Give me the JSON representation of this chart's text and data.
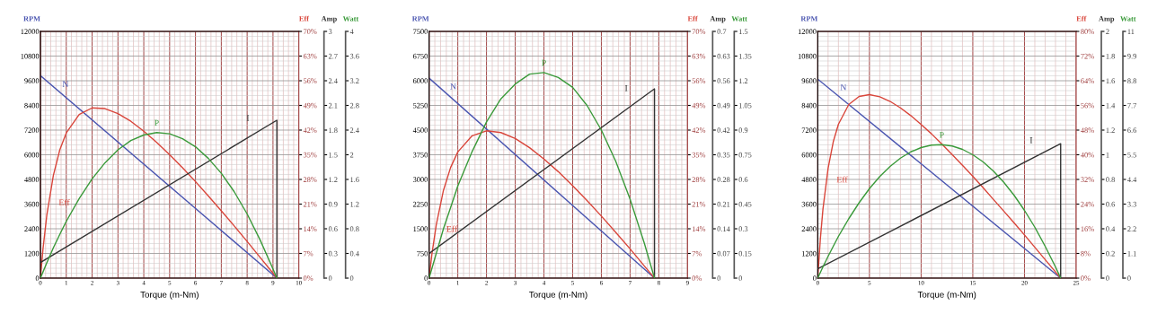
{
  "chart_data": [
    {
      "type": "line",
      "xlabel": "Torque (m-Nm)",
      "ylabel": "RPM",
      "y2label": "Eff",
      "y3label": "Amp",
      "grid": true,
      "marker": "none",
      "line_style": "solid",
      "xlim": [
        0,
        10
      ],
      "xticks": [
        0,
        {
          "value": 0.2,
          "label": null
        },
        {
          "value": 0.4,
          "label": null
        },
        {
          "value": 0.6,
          "label": null
        },
        {
          "value": 0.8,
          "label": null
        },
        1,
        {
          "value": 1.2,
          "label": null
        },
        {
          "value": 1.4,
          "label": null
        },
        {
          "value": 1.6,
          "label": null
        },
        {
          "value": 1.8,
          "label": null
        },
        2,
        {
          "value": 2.2,
          "label": null
        },
        {
          "value": 2.4,
          "label": null
        },
        {
          "value": 2.6,
          "label": null
        },
        {
          "value": 2.8,
          "label": null
        },
        3,
        {
          "value": 3.2,
          "label": null
        },
        {
          "value": 3.4,
          "label": null
        },
        {
          "value": 3.6,
          "label": null
        },
        {
          "value": 3.8,
          "label": null
        },
        4,
        {
          "value": 4.2,
          "label": null
        },
        {
          "value": 4.4,
          "label": null
        },
        {
          "value": 4.6,
          "label": null
        },
        {
          "value": 4.8,
          "label": null
        },
        5,
        {
          "value": 5.2,
          "label": null
        },
        {
          "value": 5.4,
          "label": null
        },
        {
          "value": 5.6,
          "label": null
        },
        {
          "value": 5.8,
          "label": null
        },
        6,
        {
          "value": 6.2,
          "label": null
        },
        {
          "value": 6.4,
          "label": null
        },
        {
          "value": 6.6,
          "label": null
        },
        {
          "value": 6.8,
          "label": null
        },
        7,
        {
          "value": 7.2,
          "label": null
        },
        {
          "value": 7.4,
          "label": null
        },
        {
          "value": 7.6,
          "label": null
        },
        {
          "value": 7.8,
          "label": null
        },
        8,
        {
          "value": 8.2,
          "label": null
        },
        {
          "value": 8.4,
          "label": null
        },
        {
          "value": 8.6,
          "label": null
        },
        {
          "value": 8.8,
          "label": null
        },
        9,
        {
          "value": 9.2,
          "label": null
        },
        {
          "value": 9.4,
          "label": null
        },
        {
          "value": 9.6,
          "label": null
        },
        {
          "value": 9.8,
          "label": null
        },
        10
      ],
      "ylim": [
        0,
        12000
      ],
      "yticks": [
        0,
        1200,
        2400,
        3600,
        4800,
        6000,
        7200,
        8400,
        9600,
        10800,
        12000
      ],
      "y2lim": [
        0,
        70
      ],
      "y2ticks": [
        {
          "value": 0,
          "label": "0%"
        },
        {
          "value": 7,
          "label": "7%"
        },
        {
          "value": 14,
          "label": "14%"
        },
        {
          "value": 21,
          "label": "21%"
        },
        {
          "value": 28,
          "label": "28%"
        },
        {
          "value": 35,
          "label": "35%"
        },
        {
          "value": 42,
          "label": "42%"
        },
        {
          "value": 49,
          "label": "49%"
        },
        {
          "value": 56,
          "label": "56%"
        },
        {
          "value": 63,
          "label": "63%"
        },
        {
          "value": 70,
          "label": "70%"
        }
      ],
      "y3lim": [
        0,
        3
      ],
      "y3ticks": [
        0,
        0.3,
        0.6,
        0.9,
        1.2,
        1.5,
        1.8,
        2.1,
        2.4,
        2.7,
        3
      ],
      "series": [
        {
          "name": "N",
          "color": "#4a55b0",
          "axis": "y",
          "x": [
            0,
            9.15
          ],
          "values": [
            9850,
            0
          ]
        },
        {
          "name": "Eff",
          "color": "#d9453a",
          "axis": "y2",
          "x": [
            0,
            0.1,
            0.25,
            0.5,
            0.75,
            1,
            1.5,
            2,
            2.5,
            3,
            3.5,
            4,
            4.5,
            5,
            5.5,
            6,
            6.5,
            7,
            7.5,
            8,
            8.5,
            9,
            9.15
          ],
          "values": [
            0,
            8.3,
            18.0,
            29.1,
            36.4,
            41.2,
            46.4,
            48.3,
            48.1,
            46.7,
            44.5,
            41.7,
            38.5,
            35.0,
            31.3,
            27.4,
            23.3,
            19.1,
            14.8,
            10.4,
            5.9,
            1.4,
            0
          ]
        },
        {
          "name": "I",
          "color": "#333333",
          "axis": "y3",
          "x": [
            0,
            9.15,
            9.15
          ],
          "values": [
            0.19,
            1.92,
            0
          ]
        }
      ]
    },
    {
      "type": "line",
      "ylabel": "Watt",
      "tick_labels": "y",
      "marker": "none",
      "line_style": "solid",
      "xlim": [
        0,
        10
      ],
      "ylim": [
        0,
        4
      ],
      "yticks": [
        0,
        0.4,
        0.8,
        1.2,
        1.6,
        2,
        2.4,
        2.8,
        3.2,
        3.6,
        4
      ],
      "series": [
        {
          "name": "P",
          "color": "#3a9a3a",
          "x": [
            0,
            0.1,
            0.25,
            0.5,
            0.75,
            1,
            1.5,
            2,
            2.5,
            3,
            3.5,
            4,
            4.5,
            5,
            5.5,
            6,
            6.5,
            7,
            7.5,
            8,
            8.5,
            9,
            9.15
          ],
          "values": [
            0,
            0.1,
            0.25,
            0.49,
            0.71,
            0.92,
            1.29,
            1.61,
            1.87,
            2.08,
            2.23,
            2.32,
            2.36,
            2.34,
            2.26,
            2.13,
            1.94,
            1.7,
            1.4,
            1.04,
            0.62,
            0.15,
            0
          ]
        }
      ]
    },
    {
      "type": "line",
      "xlabel": "Torque (m-Nm)",
      "ylabel": "RPM",
      "y2label": "Eff",
      "y3label": "Amp",
      "grid": true,
      "marker": "none",
      "line_style": "solid",
      "xlim": [
        0,
        9
      ],
      "xticks": [
        0,
        {
          "value": 0.2,
          "label": null
        },
        {
          "value": 0.4,
          "label": null
        },
        {
          "value": 0.6,
          "label": null
        },
        {
          "value": 0.8,
          "label": null
        },
        1,
        {
          "value": 1.2,
          "label": null
        },
        {
          "value": 1.4,
          "label": null
        },
        {
          "value": 1.6,
          "label": null
        },
        {
          "value": 1.8,
          "label": null
        },
        2,
        {
          "value": 2.2,
          "label": null
        },
        {
          "value": 2.4,
          "label": null
        },
        {
          "value": 2.6,
          "label": null
        },
        {
          "value": 2.8,
          "label": null
        },
        3,
        {
          "value": 3.2,
          "label": null
        },
        {
          "value": 3.4,
          "label": null
        },
        {
          "value": 3.6,
          "label": null
        },
        {
          "value": 3.8,
          "label": null
        },
        4,
        {
          "value": 4.2,
          "label": null
        },
        {
          "value": 4.4,
          "label": null
        },
        {
          "value": 4.6,
          "label": null
        },
        {
          "value": 4.8,
          "label": null
        },
        5,
        {
          "value": 5.2,
          "label": null
        },
        {
          "value": 5.4,
          "label": null
        },
        {
          "value": 5.6,
          "label": null
        },
        {
          "value": 5.8,
          "label": null
        },
        6,
        {
          "value": 6.2,
          "label": null
        },
        {
          "value": 6.4,
          "label": null
        },
        {
          "value": 6.6,
          "label": null
        },
        {
          "value": 6.8,
          "label": null
        },
        7,
        {
          "value": 7.2,
          "label": null
        },
        {
          "value": 7.4,
          "label": null
        },
        {
          "value": 7.6,
          "label": null
        },
        {
          "value": 7.8,
          "label": null
        },
        8,
        {
          "value": 8.2,
          "label": null
        },
        {
          "value": 8.4,
          "label": null
        },
        {
          "value": 8.6,
          "label": null
        },
        {
          "value": 8.8,
          "label": null
        },
        9
      ],
      "ylim": [
        0,
        7500
      ],
      "yticks": [
        0,
        750,
        1500,
        2250,
        3000,
        3750,
        4500,
        5250,
        6000,
        6750,
        7500
      ],
      "y2lim": [
        0,
        70
      ],
      "y2ticks": [
        {
          "value": 0,
          "label": "0%"
        },
        {
          "value": 7,
          "label": "7%"
        },
        {
          "value": 14,
          "label": "14%"
        },
        {
          "value": 21,
          "label": "21%"
        },
        {
          "value": 28,
          "label": "28%"
        },
        {
          "value": 35,
          "label": "35%"
        },
        {
          "value": 42,
          "label": "42%"
        },
        {
          "value": 49,
          "label": "49%"
        },
        {
          "value": 56,
          "label": "56%"
        },
        {
          "value": 63,
          "label": "63%"
        },
        {
          "value": 70,
          "label": "70%"
        }
      ],
      "y3lim": [
        0,
        0.7
      ],
      "y3ticks": [
        0,
        0.07,
        0.14,
        0.21,
        0.28,
        0.35,
        0.42,
        0.49,
        0.56,
        0.63,
        0.7
      ],
      "series": [
        {
          "name": "N",
          "color": "#4a55b0",
          "axis": "y",
          "x": [
            0,
            7.85
          ],
          "values": [
            6080,
            0
          ]
        },
        {
          "name": "Eff",
          "color": "#d9453a",
          "axis": "y2",
          "x": [
            0,
            0.1,
            0.25,
            0.5,
            0.75,
            1,
            1.5,
            2,
            2.5,
            3,
            3.5,
            4,
            4.5,
            5,
            5.5,
            6,
            6.5,
            7,
            7.5,
            7.85
          ],
          "values": [
            0,
            6.9,
            15.1,
            24.9,
            31.4,
            35.8,
            40.4,
            41.8,
            41.3,
            39.6,
            37.0,
            33.8,
            30.2,
            26.2,
            22.0,
            17.6,
            13.0,
            8.3,
            3.4,
            0
          ]
        },
        {
          "name": "I",
          "color": "#333333",
          "axis": "y3",
          "x": [
            0,
            7.85,
            7.85
          ],
          "values": [
            0.07,
            0.537,
            0
          ]
        }
      ]
    },
    {
      "type": "line",
      "ylabel": "Watt",
      "tick_labels": "y",
      "marker": "none",
      "line_style": "solid",
      "xlim": [
        0,
        9
      ],
      "ylim": [
        0,
        1.5
      ],
      "yticks": [
        0,
        0.15,
        0.3,
        0.45,
        0.6,
        0.75,
        0.9,
        1.05,
        1.2,
        1.35,
        1.5
      ],
      "series": [
        {
          "name": "P",
          "color": "#3a9a3a",
          "x": [
            0,
            0.1,
            0.25,
            0.5,
            0.75,
            1,
            1.5,
            2,
            2.5,
            3,
            3.5,
            4,
            4.5,
            5,
            5.5,
            6,
            6.5,
            7,
            7.5,
            7.85
          ],
          "values": [
            0,
            0.06,
            0.15,
            0.3,
            0.43,
            0.56,
            0.77,
            0.95,
            1.09,
            1.18,
            1.24,
            1.25,
            1.22,
            1.16,
            1.05,
            0.9,
            0.71,
            0.48,
            0.21,
            0
          ]
        }
      ]
    },
    {
      "type": "line",
      "xlabel": "Torque (m-Nm)",
      "ylabel": "RPM",
      "y2label": "Eff",
      "y3label": "Amp",
      "grid": true,
      "marker": "none",
      "line_style": "solid",
      "xlim": [
        0,
        25
      ],
      "xticks": [
        0,
        {
          "value": 1,
          "label": null
        },
        {
          "value": 2,
          "label": null
        },
        {
          "value": 3,
          "label": null
        },
        {
          "value": 4,
          "label": null
        },
        5,
        {
          "value": 6,
          "label": null
        },
        {
          "value": 7,
          "label": null
        },
        {
          "value": 8,
          "label": null
        },
        {
          "value": 9,
          "label": null
        },
        10,
        {
          "value": 11,
          "label": null
        },
        {
          "value": 12,
          "label": null
        },
        {
          "value": 13,
          "label": null
        },
        {
          "value": 14,
          "label": null
        },
        15,
        {
          "value": 16,
          "label": null
        },
        {
          "value": 17,
          "label": null
        },
        {
          "value": 18,
          "label": null
        },
        {
          "value": 19,
          "label": null
        },
        20,
        {
          "value": 21,
          "label": null
        },
        {
          "value": 22,
          "label": null
        },
        {
          "value": 23,
          "label": null
        },
        {
          "value": 24,
          "label": null
        },
        25
      ],
      "ylim": [
        0,
        12000
      ],
      "yticks": [
        0,
        1200,
        2400,
        3600,
        4800,
        6000,
        7200,
        8400,
        9600,
        10800,
        12000
      ],
      "y2lim": [
        0,
        80
      ],
      "y2ticks": [
        {
          "value": 0,
          "label": "0%"
        },
        {
          "value": 8,
          "label": "8%"
        },
        {
          "value": 16,
          "label": "16%"
        },
        {
          "value": 24,
          "label": "24%"
        },
        {
          "value": 32,
          "label": "32%"
        },
        {
          "value": 40,
          "label": "40%"
        },
        {
          "value": 48,
          "label": "48%"
        },
        {
          "value": 56,
          "label": "56%"
        },
        {
          "value": 64,
          "label": "64%"
        },
        {
          "value": 72,
          "label": "72%"
        },
        {
          "value": 80,
          "label": "80%"
        }
      ],
      "y3lim": [
        0,
        2
      ],
      "y3ticks": [
        0,
        0.2,
        0.4,
        0.6,
        0.8,
        1,
        1.2,
        1.4,
        1.6,
        1.8,
        2
      ],
      "series": [
        {
          "name": "N",
          "color": "#4a55b0",
          "axis": "y",
          "x": [
            0,
            23.5
          ],
          "values": [
            9680,
            0
          ]
        },
        {
          "name": "Eff",
          "color": "#d9453a",
          "axis": "y2",
          "x": [
            0,
            0.25,
            0.5,
            1,
            1.5,
            2,
            3,
            4,
            5,
            6,
            7,
            8,
            9,
            10,
            11,
            12,
            13,
            14,
            15,
            16,
            17,
            18,
            19,
            20,
            21,
            22,
            23,
            23.5
          ],
          "values": [
            0,
            12.7,
            22.3,
            35.6,
            44.2,
            49.9,
            56.3,
            58.9,
            59.5,
            58.8,
            57.3,
            55.2,
            52.7,
            49.8,
            46.8,
            43.5,
            40.1,
            36.6,
            33.0,
            29.3,
            25.5,
            21.7,
            17.9,
            14.0,
            10.0,
            6.0,
            2.0,
            0
          ]
        },
        {
          "name": "I",
          "color": "#333333",
          "axis": "y3",
          "x": [
            0,
            23.5,
            23.5
          ],
          "values": [
            0.075,
            1.09,
            0
          ]
        }
      ]
    },
    {
      "type": "line",
      "ylabel": "Watt",
      "tick_labels": "y",
      "marker": "none",
      "line_style": "solid",
      "xlim": [
        0,
        25
      ],
      "ylim": [
        0,
        11
      ],
      "yticks": [
        0,
        1.1,
        2.2,
        3.3,
        4.4,
        5.5,
        6.6,
        7.7,
        8.8,
        9.9,
        11
      ],
      "series": [
        {
          "name": "P",
          "color": "#3a9a3a",
          "x": [
            0,
            0.25,
            0.5,
            1,
            1.5,
            2,
            3,
            4,
            5,
            6,
            7,
            8,
            9,
            10,
            11,
            12,
            13,
            14,
            15,
            16,
            17,
            18,
            19,
            20,
            21,
            22,
            23,
            23.5
          ],
          "values": [
            0,
            0.25,
            0.5,
            0.97,
            1.42,
            1.86,
            2.65,
            3.36,
            3.99,
            4.53,
            4.98,
            5.35,
            5.63,
            5.82,
            5.93,
            5.95,
            5.89,
            5.74,
            5.5,
            5.18,
            4.77,
            4.27,
            3.69,
            3.02,
            2.27,
            1.42,
            0.5,
            0
          ]
        }
      ]
    }
  ]
}
